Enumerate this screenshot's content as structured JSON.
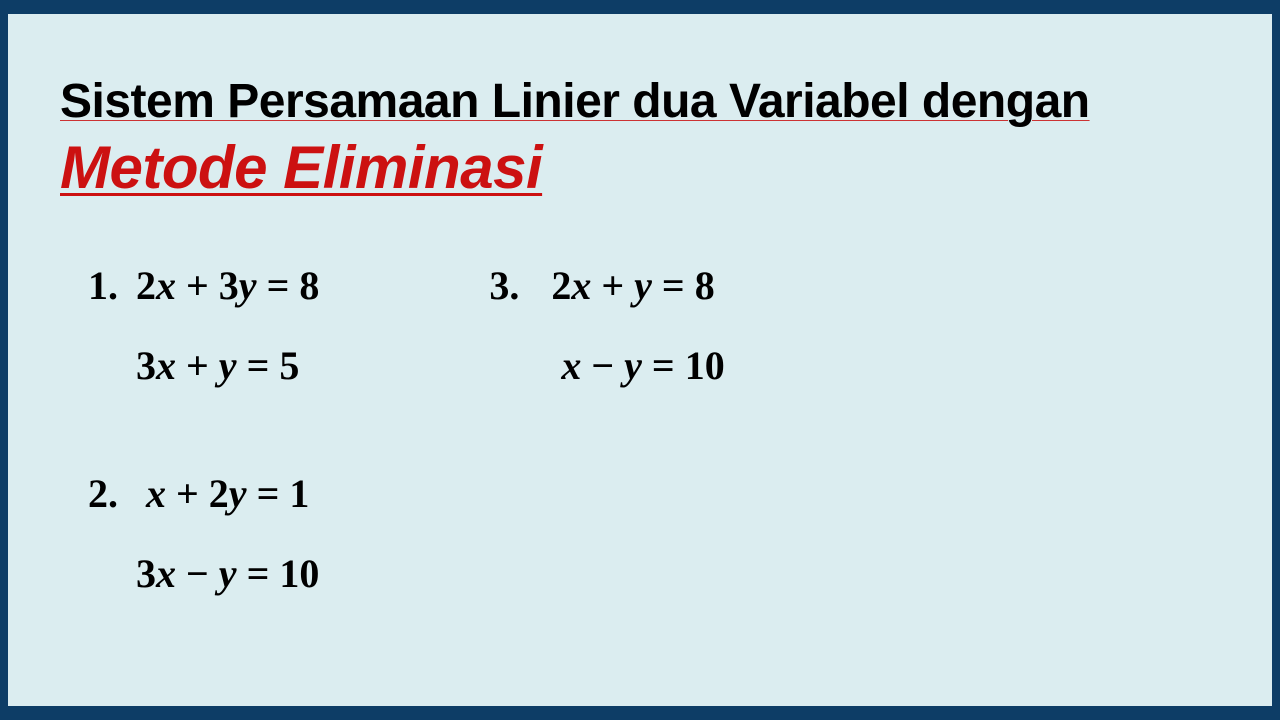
{
  "slide": {
    "background_color": "#dbedf0",
    "border_color": "#0d3d66",
    "title": {
      "line1": "Sistem Persamaan Linier dua Variabel dengan",
      "line1_color": "#000000",
      "line1_fontsize": 48,
      "line1_underline_color": "#cc3333",
      "line2": "Metode Eliminasi",
      "line2_color": "#cc1111",
      "line2_fontsize": 60,
      "line2_italic": true,
      "line2_underline": true
    },
    "content": {
      "text_color": "#000000",
      "fontsize": 40,
      "font_family": "Cambria Math / Times",
      "font_weight": "bold",
      "problems": [
        {
          "number": "1.",
          "eq1": {
            "coef_x": "2",
            "sign": "+",
            "coef_y": "3",
            "rhs": "8"
          },
          "eq2": {
            "coef_x": "3",
            "sign": "+",
            "coef_y": "",
            "rhs": "5"
          }
        },
        {
          "number": "2.",
          "eq1": {
            "coef_x": "",
            "sign": "+",
            "coef_y": "2",
            "rhs": "1"
          },
          "eq2": {
            "coef_x": "3",
            "sign": "−",
            "coef_y": "",
            "rhs": "10"
          }
        },
        {
          "number": "3.",
          "eq1": {
            "coef_x": "2",
            "sign": "+",
            "coef_y": "",
            "rhs": "8"
          },
          "eq2": {
            "coef_x": "",
            "sign": "−",
            "coef_y": "",
            "rhs": "10"
          }
        }
      ]
    }
  }
}
